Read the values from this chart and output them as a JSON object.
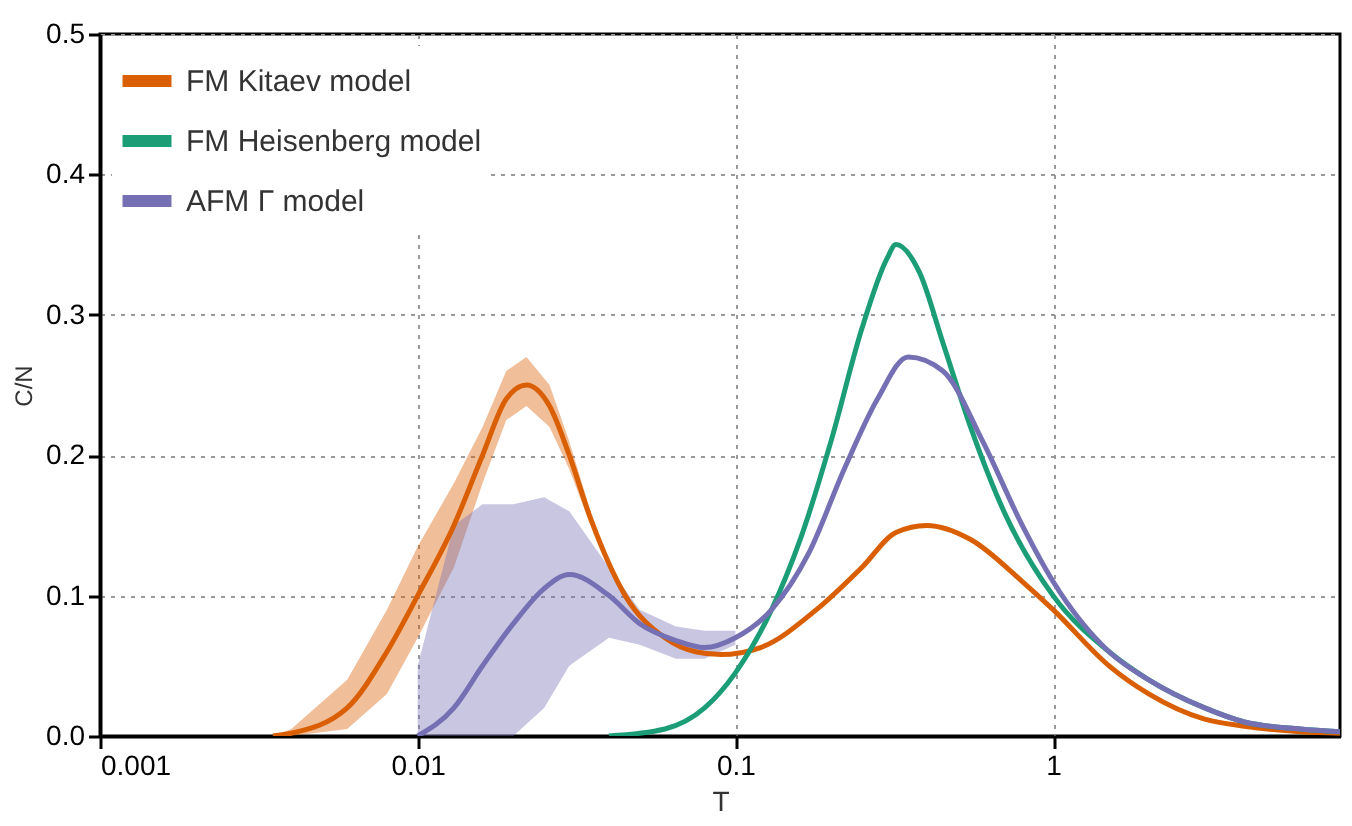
{
  "chart_data": {
    "type": "line",
    "xlabel": "T",
    "ylabel": "C/N",
    "log": "x",
    "grid": true,
    "legend": "top left",
    "line_style": "solid",
    "xlim": [
      0.001,
      8
    ],
    "xticks": [
      0.001,
      0.01,
      0.1,
      1
    ],
    "ylim": [
      0,
      0.5
    ],
    "yticks": [
      {
        "value": 0,
        "label": "0.0"
      },
      0.1,
      0.2,
      0.3,
      0.4,
      0.5
    ],
    "series": [
      {
        "name": "FM Kitaev model",
        "color": "#d95f02",
        "x": [
          0.0035,
          0.004,
          0.006,
          0.008,
          0.01,
          0.013,
          0.016,
          0.019,
          0.022,
          0.026,
          0.03,
          0.035,
          0.045,
          0.06,
          0.075,
          0.09,
          0.12,
          0.18,
          0.25,
          0.32,
          0.4,
          0.55,
          0.8,
          1.0,
          1.5,
          2,
          3,
          4,
          6,
          8
        ],
        "values": [
          0,
          0.002,
          0.02,
          0.06,
          0.1,
          0.15,
          0.2,
          0.24,
          0.25,
          0.235,
          0.2,
          0.155,
          0.1,
          0.07,
          0.06,
          0.058,
          0.063,
          0.09,
          0.12,
          0.145,
          0.15,
          0.14,
          0.11,
          0.09,
          0.05,
          0.03,
          0.012,
          0.007,
          0.003,
          0.002
        ],
        "lower": [
          0,
          0,
          0.005,
          0.03,
          0.07,
          0.12,
          0.18,
          0.225,
          0.235,
          0.22,
          0.19,
          0.15,
          null,
          null,
          null,
          null,
          null,
          null,
          null,
          null,
          null,
          null,
          null,
          null,
          null,
          null,
          null,
          null,
          null,
          null
        ],
        "upper": [
          0,
          0.005,
          0.04,
          0.09,
          0.135,
          0.18,
          0.22,
          0.26,
          0.27,
          0.25,
          0.21,
          0.16,
          null,
          null,
          null,
          null,
          null,
          null,
          null,
          null,
          null,
          null,
          null,
          null,
          null,
          null,
          null,
          null,
          null,
          null
        ]
      },
      {
        "name": "FM Heisenberg model",
        "color": "#1b9e77",
        "x": [
          0.04,
          0.06,
          0.08,
          0.1,
          0.13,
          0.16,
          0.2,
          0.25,
          0.3,
          0.32,
          0.38,
          0.45,
          0.55,
          0.7,
          1,
          1.5,
          2,
          3,
          4,
          6,
          8
        ],
        "values": [
          0,
          0.005,
          0.02,
          0.045,
          0.09,
          0.14,
          0.21,
          0.29,
          0.34,
          0.35,
          0.33,
          0.28,
          0.22,
          0.16,
          0.1,
          0.06,
          0.04,
          0.02,
          0.01,
          0.005,
          0.003
        ]
      },
      {
        "name": "AFM Γ model",
        "color": "#7570b3",
        "x": [
          0.01,
          0.013,
          0.016,
          0.02,
          0.025,
          0.03,
          0.04,
          0.05,
          0.065,
          0.08,
          0.1,
          0.13,
          0.17,
          0.22,
          0.28,
          0.35,
          0.45,
          0.6,
          0.8,
          1.0,
          1.5,
          2,
          3,
          4,
          6,
          8
        ],
        "values": [
          0,
          0.02,
          0.05,
          0.08,
          0.105,
          0.115,
          0.1,
          0.08,
          0.068,
          0.063,
          0.07,
          0.09,
          0.13,
          0.19,
          0.24,
          0.27,
          0.26,
          0.21,
          0.15,
          0.11,
          0.06,
          0.04,
          0.02,
          0.01,
          0.005,
          0.003
        ],
        "lower": [
          0,
          0,
          0,
          0,
          0.02,
          0.05,
          0.07,
          0.065,
          0.055,
          0.055,
          0.065,
          null,
          null,
          null,
          null,
          null,
          null,
          null,
          null,
          null,
          null,
          null,
          null,
          null,
          null,
          null
        ],
        "upper": [
          0.05,
          0.15,
          0.165,
          0.165,
          0.17,
          0.16,
          0.12,
          0.09,
          0.078,
          0.075,
          0.075,
          null,
          null,
          null,
          null,
          null,
          null,
          null,
          null,
          null,
          null,
          null,
          null,
          null,
          null,
          null
        ]
      }
    ]
  }
}
